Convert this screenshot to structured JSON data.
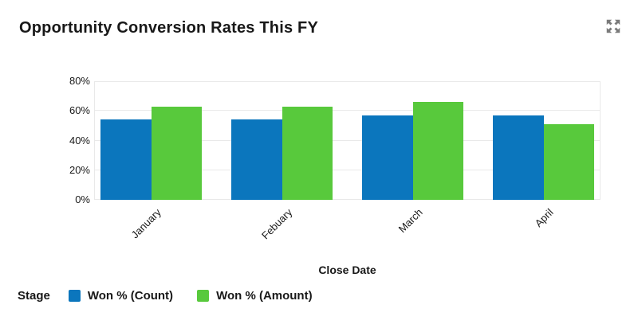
{
  "header": {
    "title": "Opportunity Conversion Rates This FY"
  },
  "icons": {
    "expand": "expand-icon"
  },
  "colors": {
    "series_count_blue": "#0b76bd",
    "series_amount_green": "#58c93c",
    "text": "#181818",
    "gridline": "#e9e9e9",
    "icon_gray": "#7a7a7a",
    "background": "#ffffff"
  },
  "chart_data": {
    "type": "bar",
    "title": "Opportunity Conversion Rates This FY",
    "categories": [
      "January",
      "Febuary",
      "March",
      "April"
    ],
    "series": [
      {
        "name": "Won % (Count)",
        "color": "#0b76bd",
        "values": [
          54,
          54,
          57,
          57
        ]
      },
      {
        "name": "Won % (Amount)",
        "color": "#58c93c",
        "values": [
          63,
          63,
          66,
          51
        ]
      }
    ],
    "xlabel": "Close Date",
    "ylabel": "",
    "ylim": [
      0,
      80
    ],
    "ytick_step": 20,
    "ytick_labels": [
      "0%",
      "20%",
      "40%",
      "60%",
      "80%"
    ],
    "grid": true,
    "legend": {
      "title": "Stage",
      "position": "bottom-left"
    }
  }
}
